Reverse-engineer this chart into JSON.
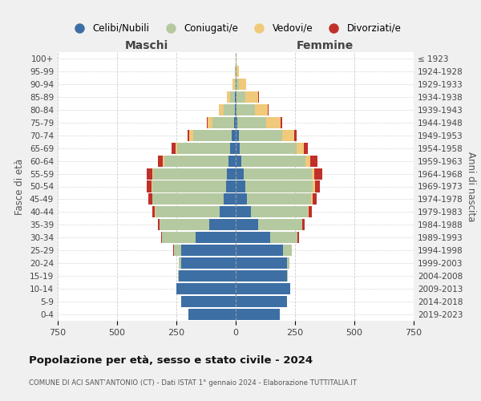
{
  "age_groups": [
    "0-4",
    "5-9",
    "10-14",
    "15-19",
    "20-24",
    "25-29",
    "30-34",
    "35-39",
    "40-44",
    "45-49",
    "50-54",
    "55-59",
    "60-64",
    "65-69",
    "70-74",
    "75-79",
    "80-84",
    "85-89",
    "90-94",
    "95-99",
    "100+"
  ],
  "birth_years": [
    "2019-2023",
    "2014-2018",
    "2009-2013",
    "2004-2008",
    "1999-2003",
    "1994-1998",
    "1989-1993",
    "1984-1988",
    "1979-1983",
    "1974-1978",
    "1969-1973",
    "1964-1968",
    "1959-1963",
    "1954-1958",
    "1949-1953",
    "1944-1948",
    "1939-1943",
    "1934-1938",
    "1929-1933",
    "1924-1928",
    "≤ 1923"
  ],
  "colors": {
    "celibi": "#3d6fa5",
    "coniugati": "#b5c9a0",
    "vedovi": "#f0c97a",
    "divorziati": "#c0302a"
  },
  "maschi": {
    "celibi": [
      200,
      230,
      250,
      240,
      230,
      230,
      170,
      110,
      68,
      50,
      42,
      38,
      30,
      25,
      18,
      8,
      5,
      2,
      0,
      0,
      0
    ],
    "coniugati": [
      0,
      0,
      1,
      2,
      10,
      30,
      140,
      210,
      270,
      300,
      310,
      310,
      270,
      220,
      160,
      90,
      45,
      20,
      5,
      2,
      0
    ],
    "vedovi": [
      0,
      0,
      0,
      0,
      0,
      0,
      0,
      1,
      2,
      3,
      4,
      5,
      8,
      10,
      18,
      20,
      20,
      15,
      8,
      2,
      0
    ],
    "divorziati": [
      0,
      0,
      0,
      0,
      0,
      2,
      5,
      8,
      10,
      15,
      20,
      22,
      20,
      15,
      8,
      5,
      2,
      0,
      0,
      0,
      0
    ]
  },
  "femmine": {
    "celibi": [
      185,
      215,
      230,
      215,
      215,
      200,
      145,
      95,
      65,
      48,
      40,
      35,
      25,
      18,
      12,
      8,
      5,
      5,
      2,
      0,
      0
    ],
    "coniugati": [
      0,
      0,
      1,
      4,
      12,
      35,
      115,
      185,
      240,
      270,
      285,
      285,
      270,
      240,
      185,
      120,
      75,
      35,
      12,
      4,
      0
    ],
    "vedovi": [
      0,
      0,
      0,
      0,
      0,
      0,
      1,
      2,
      3,
      5,
      8,
      10,
      20,
      30,
      50,
      60,
      55,
      55,
      30,
      8,
      2
    ],
    "divorziati": [
      0,
      0,
      0,
      0,
      1,
      2,
      6,
      10,
      12,
      18,
      22,
      35,
      30,
      15,
      10,
      8,
      5,
      2,
      0,
      0,
      0
    ]
  },
  "title": "Popolazione per età, sesso e stato civile - 2024",
  "subtitle": "COMUNE DI ACI SANT'ANTONIO (CT) - Dati ISTAT 1° gennaio 2024 - Elaborazione TUTTITALIA.IT",
  "xlabel_left": "Maschi",
  "xlabel_right": "Femmine",
  "ylabel_left": "Fasce di età",
  "ylabel_right": "Anni di nascita",
  "xlim": 750,
  "xticks": [
    -750,
    -500,
    -250,
    0,
    250,
    500,
    750
  ],
  "legend_labels": [
    "Celibi/Nubili",
    "Coniugati/e",
    "Vedovi/e",
    "Divorziati/e"
  ],
  "bg_color": "#f0f0f0",
  "plot_bg_color": "#ffffff"
}
